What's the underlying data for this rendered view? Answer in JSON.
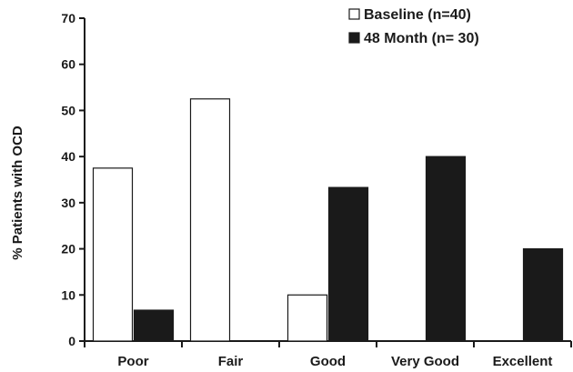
{
  "chart_data": {
    "type": "bar",
    "title": "",
    "xlabel": "",
    "ylabel": "% Patients with OCD",
    "ylim": [
      0,
      70
    ],
    "yticks": [
      0,
      10,
      20,
      30,
      40,
      50,
      60,
      70
    ],
    "categories": [
      "Poor",
      "Fair",
      "Good",
      "Very Good",
      "Excellent"
    ],
    "series": [
      {
        "name": "Baseline (n=40)",
        "values": [
          37.5,
          52.5,
          10,
          0,
          0
        ],
        "color": "#ffffff",
        "stroke": "#1a1a1a"
      },
      {
        "name": "48 Month (n= 30)",
        "values": [
          6.7,
          0,
          33.3,
          40,
          20
        ],
        "color": "#1a1a1a",
        "stroke": "#1a1a1a"
      }
    ],
    "legend_position": "top-right",
    "grid": false
  }
}
